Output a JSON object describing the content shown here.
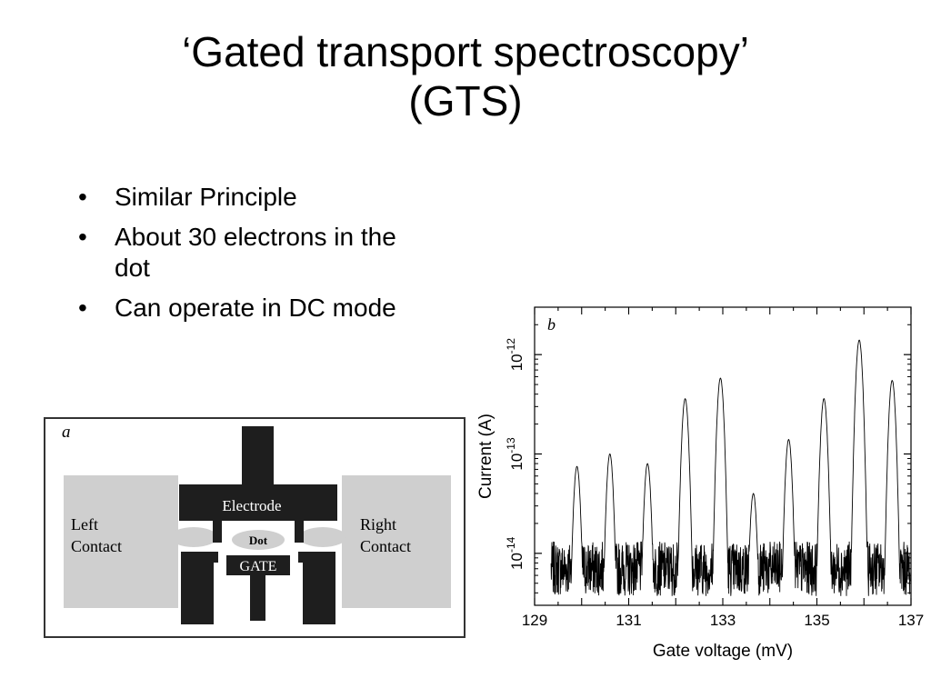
{
  "title": {
    "line1": "‘Gated transport spectroscopy’",
    "line2": "(GTS)"
  },
  "bullets": [
    "Similar Principle",
    "About 30 electrons in the dot",
    "Can operate in DC mode"
  ],
  "figure_a": {
    "panel_label": "a",
    "left_contact": [
      "Left",
      "Contact"
    ],
    "right_contact": [
      "Right",
      "Contact"
    ],
    "electrode": "Electrode",
    "dot": "Dot",
    "gate": "GATE",
    "colors": {
      "contact": "#cfcfcf",
      "metal": "#1e1e1e"
    }
  },
  "chart_data": {
    "type": "line",
    "panel_label": "b",
    "xlabel": "Gate voltage (mV)",
    "ylabel": "Current (A)",
    "xlim": [
      129,
      137
    ],
    "ylim": [
      3e-15,
      3e-12
    ],
    "yscale": "log",
    "xticks": [
      "129",
      "131",
      "133",
      "135",
      "137"
    ],
    "yticks": [
      {
        "value": 1e-14,
        "base": "10",
        "exp": "-14"
      },
      {
        "value": 1e-13,
        "base": "10",
        "exp": "-13"
      },
      {
        "value": 1e-12,
        "base": "10",
        "exp": "-12"
      }
    ],
    "noise_floor": 7e-15,
    "peaks": [
      {
        "x": 129.9,
        "y": 7.5e-14
      },
      {
        "x": 130.6,
        "y": 1e-13
      },
      {
        "x": 131.4,
        "y": 8e-14
      },
      {
        "x": 132.2,
        "y": 3.6e-13
      },
      {
        "x": 132.95,
        "y": 5.8e-13
      },
      {
        "x": 133.65,
        "y": 4e-14
      },
      {
        "x": 134.4,
        "y": 1.4e-13
      },
      {
        "x": 135.15,
        "y": 3.6e-13
      },
      {
        "x": 135.9,
        "y": 1.4e-12
      },
      {
        "x": 136.6,
        "y": 5.5e-13
      }
    ]
  }
}
